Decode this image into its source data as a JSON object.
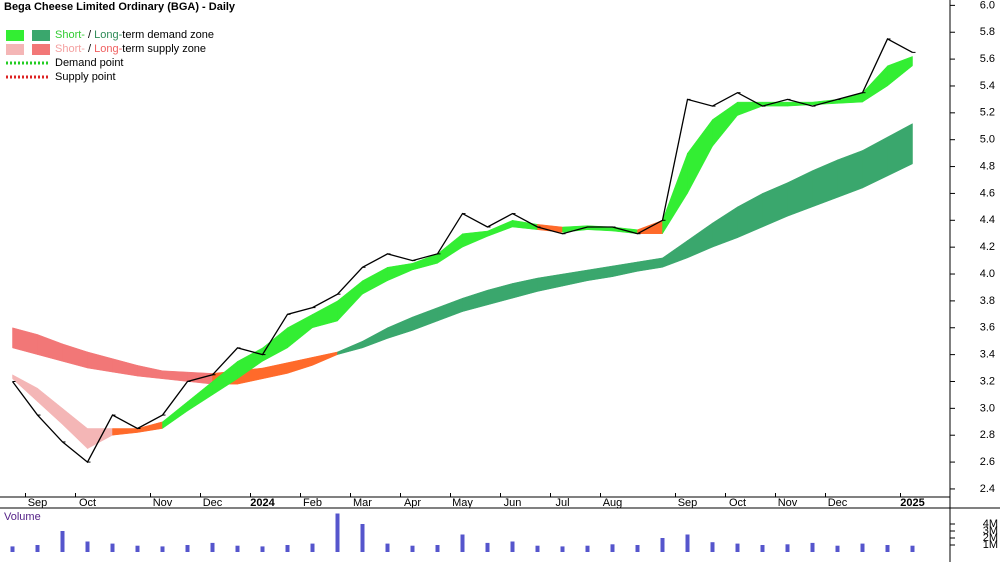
{
  "chart_data": [
    {
      "type": "line",
      "title": "Bega Cheese Limited Ordinary (BGA) - Daily",
      "categories": [
        null,
        "Sep",
        null,
        "Oct",
        null,
        null,
        "Nov",
        null,
        "Dec",
        null,
        "2024",
        null,
        "Feb",
        null,
        "Mar",
        null,
        "Apr",
        null,
        "May",
        null,
        "Jun",
        null,
        "Jul",
        null,
        "Aug",
        null,
        null,
        "Sep",
        null,
        "Oct",
        null,
        "Nov",
        null,
        "Dec",
        null,
        null,
        "2025"
      ],
      "values": [
        3.2,
        2.95,
        2.75,
        2.6,
        2.95,
        2.85,
        2.95,
        3.2,
        3.25,
        3.45,
        3.4,
        3.7,
        3.75,
        3.85,
        4.05,
        4.15,
        4.1,
        4.15,
        4.45,
        4.35,
        4.45,
        4.35,
        4.3,
        4.35,
        4.35,
        4.3,
        4.4,
        5.3,
        5.25,
        5.35,
        5.25,
        5.3,
        5.25,
        5.3,
        5.35,
        5.75,
        5.65
      ],
      "color": "#000000",
      "zones": [
        {
          "upper": [
            3.6,
            3.55,
            3.48,
            3.42,
            3.37,
            3.32,
            3.28,
            3.27,
            3.26,
            3.28,
            3.3,
            3.34,
            3.38,
            3.42,
            3.5,
            3.6,
            3.68,
            3.75,
            3.82,
            3.88,
            3.93,
            3.97,
            4.0,
            4.03,
            4.06,
            4.09,
            4.12,
            4.25,
            4.38,
            4.5,
            4.6,
            4.68,
            4.77,
            4.85,
            4.92,
            5.02,
            5.12
          ],
          "lower": [
            3.45,
            3.4,
            3.35,
            3.3,
            3.27,
            3.24,
            3.22,
            3.2,
            3.18,
            3.18,
            3.22,
            3.26,
            3.32,
            3.4,
            3.45,
            3.52,
            3.58,
            3.65,
            3.72,
            3.77,
            3.82,
            3.87,
            3.91,
            3.95,
            3.98,
            4.02,
            4.05,
            4.12,
            4.2,
            4.27,
            4.35,
            4.43,
            4.5,
            4.57,
            4.64,
            4.73,
            4.82
          ],
          "colors": [
            "#f27777",
            "#f27777",
            "#f27777",
            "#f27777",
            "#f27777",
            "#f27777",
            "#f27777",
            "#f27777",
            "#ff6a2a",
            "#ff6a2a",
            "#ff6a2a",
            "#ff6a2a",
            "#ff6a2a",
            "#3aa76d",
            "#3aa76d",
            "#3aa76d",
            "#3aa76d",
            "#3aa76d",
            "#3aa76d",
            "#3aa76d",
            "#3aa76d",
            "#3aa76d",
            "#3aa76d",
            "#3aa76d",
            "#3aa76d",
            "#3aa76d",
            "#3aa76d",
            "#3aa76d",
            "#3aa76d",
            "#3aa76d",
            "#3aa76d",
            "#3aa76d",
            "#3aa76d",
            "#3aa76d",
            "#3aa76d",
            "#3aa76d",
            "#3aa76d"
          ]
        },
        {
          "upper": [
            3.25,
            3.15,
            3.0,
            2.85,
            2.85,
            2.85,
            2.9,
            3.05,
            3.2,
            3.35,
            3.45,
            3.6,
            3.7,
            3.8,
            3.95,
            4.05,
            4.08,
            4.15,
            4.3,
            4.32,
            4.4,
            4.37,
            4.35,
            4.36,
            4.35,
            4.33,
            4.4,
            4.9,
            5.15,
            5.28,
            5.28,
            5.28,
            5.28,
            5.3,
            5.35,
            5.55,
            5.62
          ],
          "lower": [
            3.22,
            3.05,
            2.88,
            2.7,
            2.8,
            2.82,
            2.85,
            2.98,
            3.1,
            3.22,
            3.35,
            3.45,
            3.6,
            3.65,
            3.85,
            3.95,
            4.03,
            4.08,
            4.2,
            4.28,
            4.35,
            4.33,
            4.31,
            4.33,
            4.32,
            4.3,
            4.3,
            4.6,
            4.95,
            5.18,
            5.25,
            5.25,
            5.26,
            5.27,
            5.28,
            5.4,
            5.55
          ],
          "colors": [
            "#f4b6b6",
            "#f4b6b6",
            "#f4b6b6",
            "#f4b6b6",
            "#ff6a2a",
            "#ff6a2a",
            "#33ee33",
            "#33ee33",
            "#33ee33",
            "#33ee33",
            "#33ee33",
            "#33ee33",
            "#33ee33",
            "#33ee33",
            "#33ee33",
            "#33ee33",
            "#33ee33",
            "#33ee33",
            "#33ee33",
            "#33ee33",
            "#33ee33",
            "#ff6a2a",
            "#33ee33",
            "#33ee33",
            "#33ee33",
            "#ff6a2a",
            "#33ee33",
            "#33ee33",
            "#33ee33",
            "#33ee33",
            "#33ee33",
            "#33ee33",
            "#33ee33",
            "#33ee33",
            "#33ee33",
            "#33ee33",
            "#33ee33"
          ]
        }
      ],
      "ylim": [
        2.34,
        6.04
      ],
      "yticks": [
        2.4,
        2.6,
        2.8,
        {
          "value": 3,
          "label": "3.0"
        },
        3.2,
        3.4,
        3.6,
        3.8,
        {
          "value": 4,
          "label": "4.0"
        },
        4.2,
        4.4,
        4.6,
        4.8,
        {
          "value": 5,
          "label": "5.0"
        },
        5.2,
        5.4,
        5.6,
        5.8,
        {
          "value": 6,
          "label": "6.0"
        }
      ],
      "legend": {
        "corner": "top-left",
        "items": [
          {
            "swatches": [
              "#33ee33",
              "#3aa76d"
            ],
            "parts": [
              {
                "text": "Short-",
                "color": "#33cc33"
              },
              {
                "text": " / ",
                "color": "#000000"
              },
              {
                "text": "Long-",
                "color": "#2e8b57"
              },
              {
                "text": "term demand zone",
                "color": "#000000"
              }
            ]
          },
          {
            "swatches": [
              "#f4b6b6",
              "#f27777"
            ],
            "parts": [
              {
                "text": "Short-",
                "color": "#f4a0a0"
              },
              {
                "text": " / ",
                "color": "#000000"
              },
              {
                "text": "Long-",
                "color": "#f06060"
              },
              {
                "text": "term supply zone",
                "color": "#000000"
              }
            ]
          },
          {
            "dotted": "#22cc22",
            "parts": [
              {
                "text": "Demand point",
                "color": "#000000"
              }
            ]
          },
          {
            "dotted": "#dd2222",
            "parts": [
              {
                "text": "Supply point",
                "color": "#000000"
              }
            ]
          }
        ]
      }
    },
    {
      "type": "bar",
      "title": "Volume",
      "values": [
        800000,
        1000000,
        3000000,
        1500000,
        1200000,
        900000,
        800000,
        1000000,
        1300000,
        900000,
        800000,
        1000000,
        1200000,
        5500000,
        4000000,
        1200000,
        900000,
        1000000,
        2500000,
        1300000,
        1500000,
        900000,
        800000,
        900000,
        1100000,
        1000000,
        2000000,
        2500000,
        1400000,
        1200000,
        1000000,
        1100000,
        1300000,
        900000,
        1200000,
        1000000,
        900000
      ],
      "color": "#5555cc",
      "ylim": [
        0,
        6000000
      ],
      "yticks": [
        {
          "value": 1000000,
          "label": "1M"
        },
        {
          "value": 2000000,
          "label": "2M"
        },
        {
          "value": 3000000,
          "label": "3M"
        },
        {
          "value": 4000000,
          "label": "4M"
        }
      ]
    }
  ]
}
